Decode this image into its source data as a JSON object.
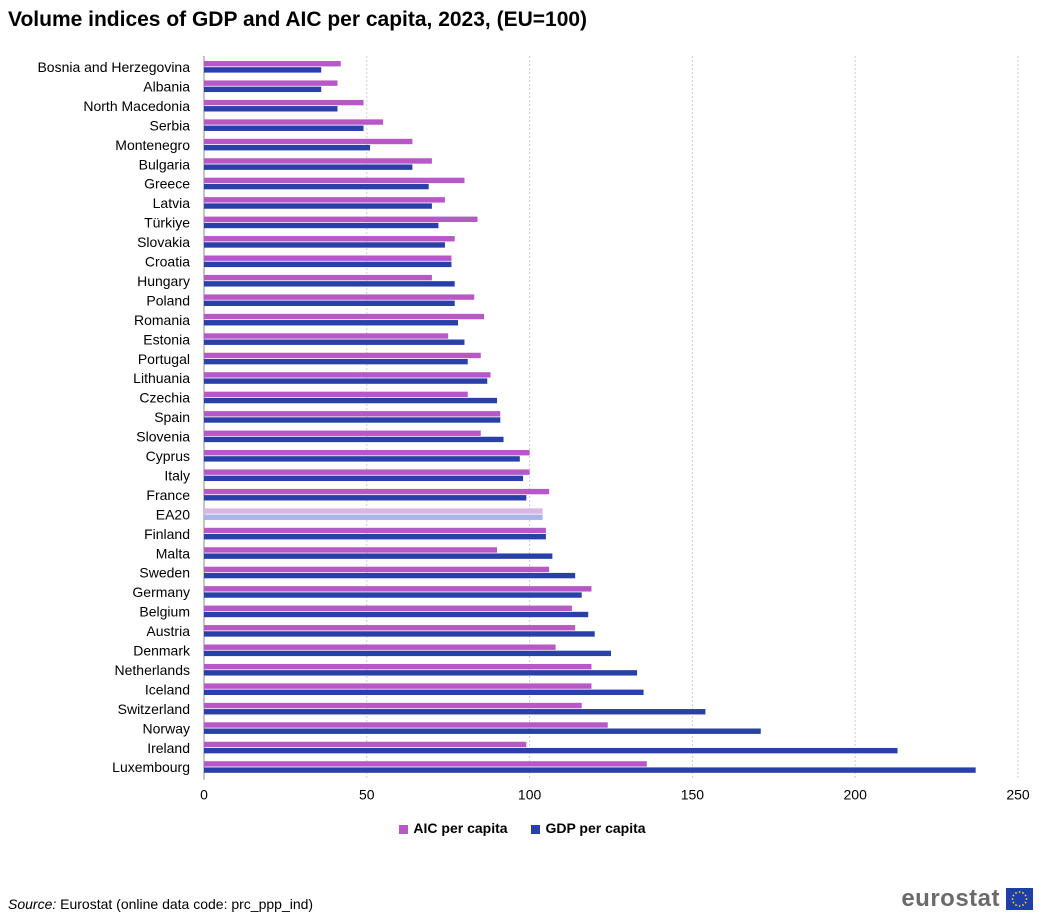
{
  "title": "Volume indices of GDP and AIC per capita, 2023, (EU=100)",
  "source_label": "Source:",
  "source_text": "Eurostat (online data code: prc_ppp_ind)",
  "logo_text": "eurostat",
  "colors": {
    "aic": "#b857c8",
    "gdp": "#2840a8",
    "aic_highlight": "#d9b7e3",
    "gdp_highlight": "#a8b6e6",
    "grid": "#cccccc"
  },
  "chart_data": {
    "type": "bar",
    "orientation": "horizontal",
    "title": "Volume indices of GDP and AIC per capita, 2023, (EU=100)",
    "xlim": [
      0,
      250
    ],
    "xticks": [
      0,
      50,
      100,
      150,
      200,
      250
    ],
    "grid": "vertical-dashed",
    "legend_position": "bottom",
    "highlight_category": "EA20",
    "categories": [
      "Bosnia and Herzegovina",
      "Albania",
      "North Macedonia",
      "Serbia",
      "Montenegro",
      "Bulgaria",
      "Greece",
      "Latvia",
      "Türkiye",
      "Slovakia",
      "Croatia",
      "Hungary",
      "Poland",
      "Romania",
      "Estonia",
      "Portugal",
      "Lithuania",
      "Czechia",
      "Spain",
      "Slovenia",
      "Cyprus",
      "Italy",
      "France",
      "EA20",
      "Finland",
      "Malta",
      "Sweden",
      "Germany",
      "Belgium",
      "Austria",
      "Denmark",
      "Netherlands",
      "Iceland",
      "Switzerland",
      "Norway",
      "Ireland",
      "Luxembourg"
    ],
    "series": [
      {
        "name": "AIC per capita",
        "values": [
          42,
          41,
          49,
          55,
          64,
          70,
          80,
          74,
          84,
          77,
          76,
          70,
          83,
          86,
          75,
          85,
          88,
          81,
          91,
          85,
          100,
          100,
          106,
          104,
          105,
          90,
          106,
          119,
          113,
          114,
          108,
          119,
          119,
          116,
          124,
          99,
          136
        ]
      },
      {
        "name": "GDP per capita",
        "values": [
          36,
          36,
          41,
          49,
          51,
          64,
          69,
          70,
          72,
          74,
          76,
          77,
          77,
          78,
          80,
          81,
          87,
          90,
          91,
          92,
          97,
          98,
          99,
          104,
          105,
          107,
          114,
          116,
          118,
          120,
          125,
          133,
          135,
          154,
          171,
          213,
          237
        ]
      }
    ]
  }
}
